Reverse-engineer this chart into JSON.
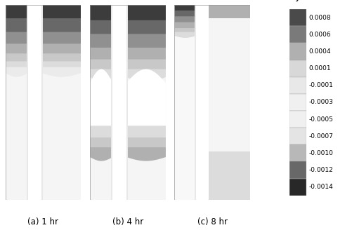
{
  "labels": [
    "(a) 1 hr",
    "(b) 4 hr",
    "(c) 8 hr"
  ],
  "colorbar_label": "J",
  "colorbar_ticks": [
    "0.0008",
    "0.0006",
    "0.0004",
    "0.0001",
    "-0.0001",
    "-0.0003",
    "-0.0005",
    "-0.0007",
    "-0.0010",
    "-0.0012",
    "-0.0014"
  ],
  "cb_colors": [
    "#4a4a4a",
    "#7a7a7a",
    "#b0b0b0",
    "#d8d8d8",
    "#e8e8e8",
    "#f0f0f0",
    "#f0f0f0",
    "#e4e4e4",
    "#b8b8b8",
    "#686868",
    "#282828"
  ],
  "background": "#ffffff",
  "panel_bg": "#f2f2f2",
  "sep_color": "#f8f8f8",
  "near_white": "#f5f5f5",
  "dark1": "#3c3c3c",
  "dark2": "#686868",
  "gray1": "#909090",
  "gray2": "#b0b0b0",
  "gray3": "#c8c8c8",
  "gray4": "#dcdcdc",
  "gray5": "#ebebeb",
  "light_bg": "#f0f0f0"
}
